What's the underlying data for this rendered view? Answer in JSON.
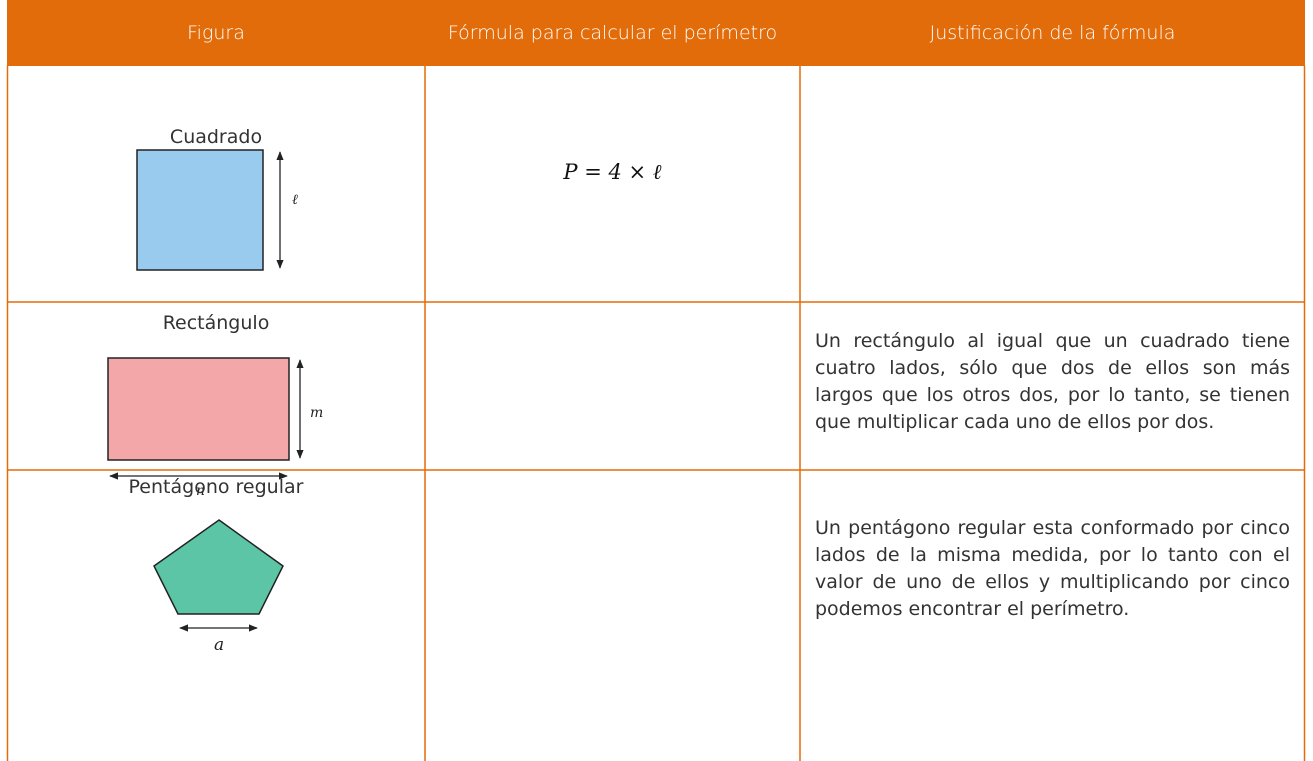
{
  "table": {
    "header": [
      "Figura",
      "Fórmula para calcular el perímetro",
      "Justificación de la fórmula"
    ],
    "rows": [
      {
        "figure": "Cuadrado",
        "labels": [
          "ℓ"
        ],
        "formula": "P = 4 × ℓ"
      },
      {
        "figure": "Rectángulo",
        "labels": [
          "m",
          "n"
        ],
        "justification": "Un rectángulo al igual que un cuadrado tiene cuatro lados, sólo que dos de ellos son más largos que los otros dos, por lo tanto, se tienen que multiplicar cada uno de ellos por dos."
      },
      {
        "figure": "Pentágono regular",
        "labels": [
          "a"
        ],
        "justification": "Un pentágono regular esta conformado por cinco lados de la misma medida, por lo tanto con el valor de uno de ellos y multiplicando por cinco podemos encontrar el perímetro."
      }
    ]
  }
}
